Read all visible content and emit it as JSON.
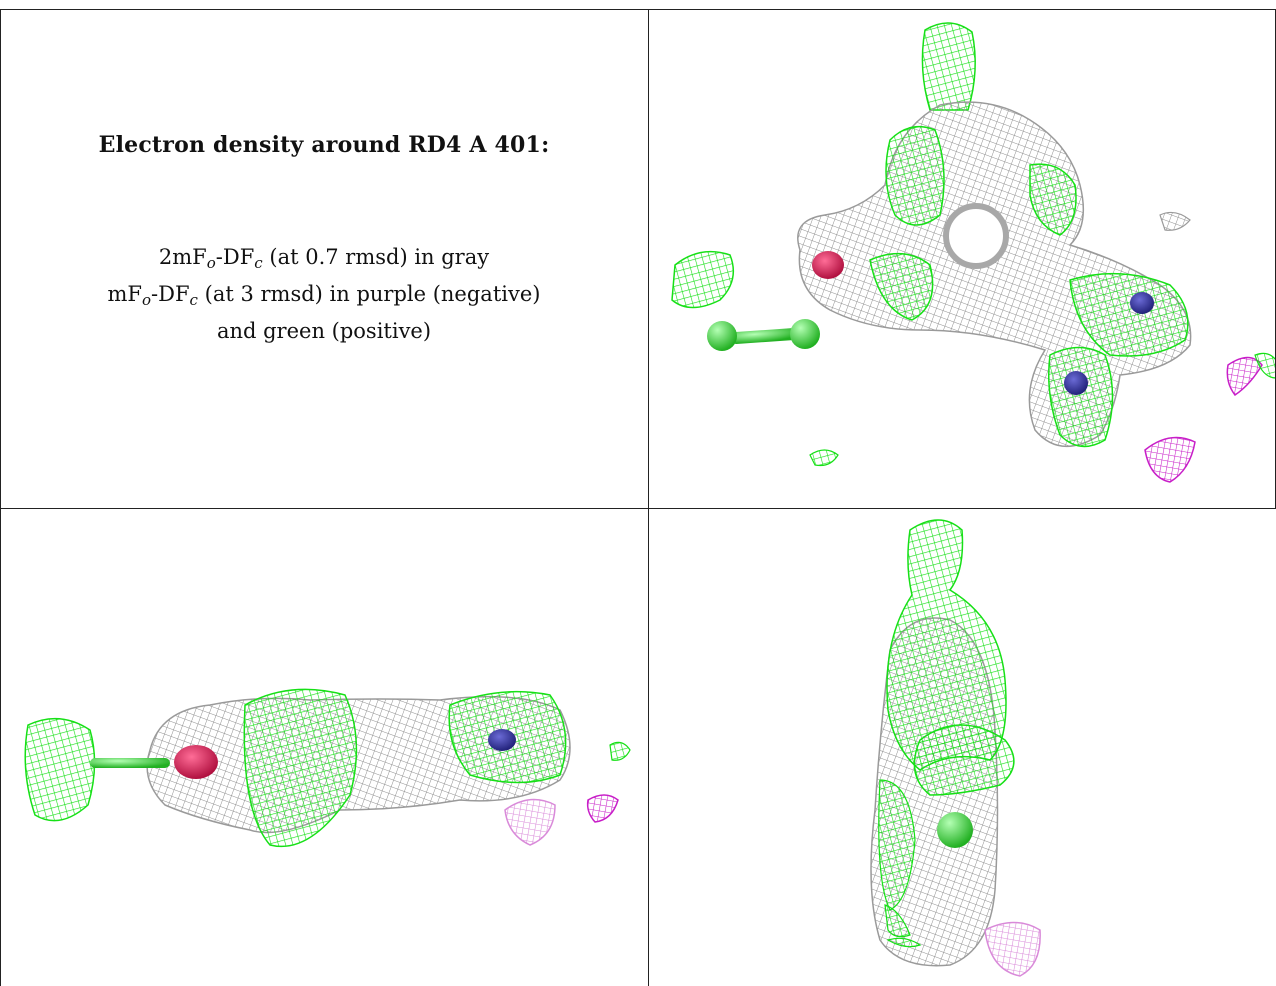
{
  "caption": {
    "title": "Electron density around RD4 A 401:",
    "line1": {
      "prefix": "2mF",
      "sub1": "o",
      "mid": "-DF",
      "sub2": "c",
      "suffix": " (at 0.7 rmsd) in gray"
    },
    "line2": {
      "prefix": "mF",
      "sub1": "o",
      "mid": "-DF",
      "sub2": "c",
      "suffix": " (at 3 rmsd) in purple (negative)"
    },
    "line3": "and green (positive)"
  },
  "colors": {
    "gray_mesh": "#9a9a9a",
    "green_mesh": "#22e822",
    "purple_mesh": "#cc22cc",
    "light_purple_mesh": "#dd88dd",
    "atom_oxygen": "#d8205a",
    "atom_nitrogen": "#3a3aa8",
    "atom_chlorine": "#55dd55",
    "grid_lines": "#222222"
  },
  "views": [
    {
      "name": "view-top-right",
      "description_icon": "density-mesh-icon"
    },
    {
      "name": "view-bottom-left",
      "description_icon": "density-mesh-icon"
    },
    {
      "name": "view-bottom-right",
      "description_icon": "density-mesh-icon"
    }
  ]
}
